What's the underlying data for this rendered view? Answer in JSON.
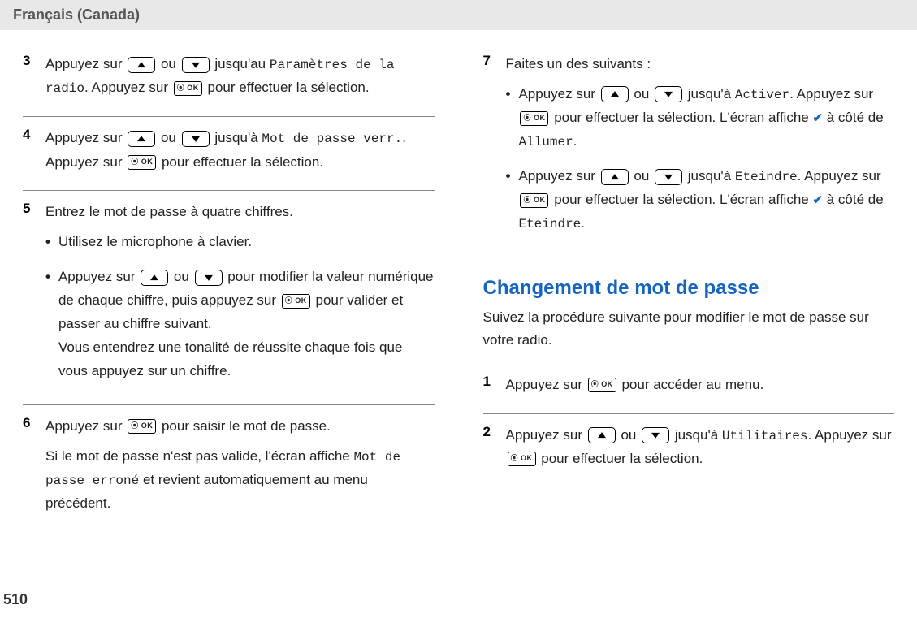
{
  "header": {
    "language": "Français (Canada)"
  },
  "left": {
    "steps": [
      {
        "num": "3",
        "parts": [
          {
            "t": "text",
            "val": "Appuyez sur "
          },
          {
            "t": "up"
          },
          {
            "t": "text",
            "val": " ou "
          },
          {
            "t": "down"
          },
          {
            "t": "text",
            "val": " jusqu'au "
          },
          {
            "t": "mono",
            "val": "Paramètres de la radio"
          },
          {
            "t": "text",
            "val": ". Appuyez sur "
          },
          {
            "t": "ok"
          },
          {
            "t": "text",
            "val": " pour effectuer la sélection."
          }
        ]
      },
      {
        "num": "4",
        "parts": [
          {
            "t": "text",
            "val": "Appuyez sur "
          },
          {
            "t": "up"
          },
          {
            "t": "text",
            "val": " ou "
          },
          {
            "t": "down"
          },
          {
            "t": "text",
            "val": " jusqu'à "
          },
          {
            "t": "mono",
            "val": "Mot de passe verr."
          },
          {
            "t": "text",
            "val": ". Appuyez sur "
          },
          {
            "t": "ok"
          },
          {
            "t": "text",
            "val": " pour effectuer la sélection."
          }
        ]
      },
      {
        "num": "5",
        "intro": "Entrez le mot de passe à quatre chiffres.",
        "bullets": [
          {
            "parts": [
              {
                "t": "text",
                "val": "Utilisez le microphone à clavier."
              }
            ]
          },
          {
            "parts": [
              {
                "t": "text",
                "val": "Appuyez sur "
              },
              {
                "t": "up"
              },
              {
                "t": "text",
                "val": " ou "
              },
              {
                "t": "down"
              },
              {
                "t": "text",
                "val": " pour modifier la valeur numérique de chaque chiffre, puis appuyez sur "
              },
              {
                "t": "ok"
              },
              {
                "t": "text",
                "val": " pour valider et passer au chiffre suivant."
              },
              {
                "t": "br"
              },
              {
                "t": "text",
                "val": "Vous entendrez une tonalité de réussite chaque fois que vous appuyez sur un chiffre."
              }
            ]
          }
        ]
      },
      {
        "num": "6",
        "parts": [
          {
            "t": "text",
            "val": "Appuyez sur "
          },
          {
            "t": "ok"
          },
          {
            "t": "text",
            "val": " pour saisir le mot de passe."
          }
        ],
        "after": [
          {
            "t": "text",
            "val": "Si le mot de passe n'est pas valide, l'écran affiche "
          },
          {
            "t": "mono",
            "val": "Mot de passe erroné"
          },
          {
            "t": "text",
            "val": " et revient automatiquement au menu précédent."
          }
        ]
      }
    ]
  },
  "right": {
    "step7": {
      "num": "7",
      "intro": "Faites un des suivants :",
      "bullets": [
        {
          "parts": [
            {
              "t": "text",
              "val": "Appuyez sur "
            },
            {
              "t": "up"
            },
            {
              "t": "text",
              "val": " ou "
            },
            {
              "t": "down"
            },
            {
              "t": "text",
              "val": " jusqu'à "
            },
            {
              "t": "mono",
              "val": "Activer"
            },
            {
              "t": "text",
              "val": ". Appuyez sur "
            },
            {
              "t": "ok"
            },
            {
              "t": "text",
              "val": " pour effectuer la sélection. L'écran affiche "
            },
            {
              "t": "check"
            },
            {
              "t": "text",
              "val": " à côté de "
            },
            {
              "t": "mono",
              "val": "Allumer"
            },
            {
              "t": "text",
              "val": "."
            }
          ]
        },
        {
          "parts": [
            {
              "t": "text",
              "val": "Appuyez sur "
            },
            {
              "t": "up"
            },
            {
              "t": "text",
              "val": " ou "
            },
            {
              "t": "down"
            },
            {
              "t": "text",
              "val": " jusqu'à "
            },
            {
              "t": "mono",
              "val": "Eteindre"
            },
            {
              "t": "text",
              "val": ". Appuyez sur "
            },
            {
              "t": "ok"
            },
            {
              "t": "text",
              "val": " pour effectuer la sélection. L'écran affiche "
            },
            {
              "t": "check"
            },
            {
              "t": "text",
              "val": " à côté de "
            },
            {
              "t": "mono",
              "val": "Eteindre"
            },
            {
              "t": "text",
              "val": "."
            }
          ]
        }
      ]
    },
    "section": {
      "title": "Changement de mot de passe",
      "intro": "Suivez la procédure suivante pour modifier le mot de passe sur votre radio.",
      "steps": [
        {
          "num": "1",
          "parts": [
            {
              "t": "text",
              "val": "Appuyez sur "
            },
            {
              "t": "ok"
            },
            {
              "t": "text",
              "val": " pour accéder au menu."
            }
          ]
        },
        {
          "num": "2",
          "parts": [
            {
              "t": "text",
              "val": "Appuyez sur "
            },
            {
              "t": "up"
            },
            {
              "t": "text",
              "val": " ou "
            },
            {
              "t": "down"
            },
            {
              "t": "text",
              "val": " jusqu'à "
            },
            {
              "t": "mono",
              "val": "Utilitaires"
            },
            {
              "t": "text",
              "val": ". Appuyez sur "
            },
            {
              "t": "ok"
            },
            {
              "t": "text",
              "val": " pour effectuer la sélection."
            }
          ]
        }
      ]
    }
  },
  "pageNumber": "510",
  "okLabel": "⦿ OK"
}
